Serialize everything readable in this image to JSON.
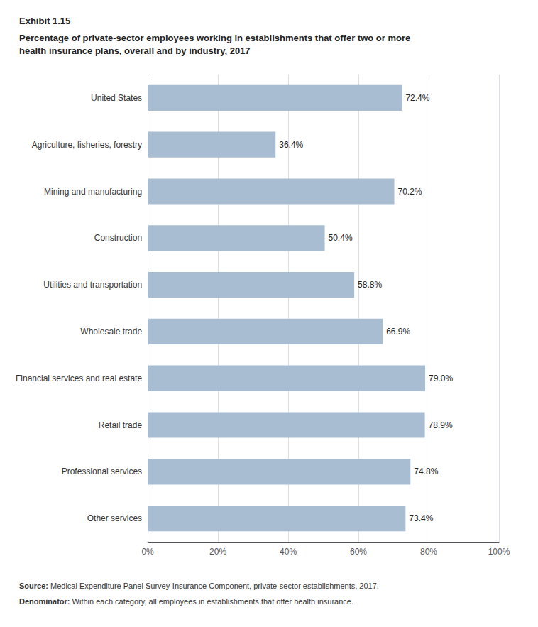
{
  "chart_data": {
    "type": "bar",
    "orientation": "horizontal",
    "title": "Exhibit 1.15",
    "subtitle": "Percentage of private-sector employees working in establishments that offer two or more\nhealth insurance plans, overall and by industry, 2017",
    "annotations": [
      "Source: Medical Expenditure Panel Survey-Insurance Component, private-sector establishments, 2017.",
      "Denominator: Within each category, all employees in establishments that offer health insurance."
    ],
    "categories": [
      "United States",
      "Agriculture, fisheries, forestry",
      "Mining and manufacturing",
      "Construction",
      "Utilities and transportation",
      "Wholesale trade",
      "Financial services and real estate",
      "Retail trade",
      "Professional services",
      "Other services"
    ],
    "values": [
      72.4,
      36.4,
      70.2,
      50.4,
      58.8,
      66.9,
      79.0,
      78.9,
      74.8,
      73.4
    ],
    "value_labels": [
      "72.4%",
      "36.4%",
      "70.2%",
      "50.4%",
      "58.8%",
      "66.9%",
      "79.0%",
      "78.9%",
      "74.8%",
      "73.4%"
    ],
    "data_labels": true,
    "color": "#a8bdd1",
    "xlim": [
      0,
      100
    ],
    "xticks": [
      {
        "value": 0,
        "label": "0%"
      },
      {
        "value": 20,
        "label": "20%"
      },
      {
        "value": 40,
        "label": "40%"
      },
      {
        "value": 60,
        "label": "60%"
      },
      {
        "value": 80,
        "label": "80%"
      },
      {
        "value": 100,
        "label": "100%"
      }
    ],
    "grid": true
  }
}
